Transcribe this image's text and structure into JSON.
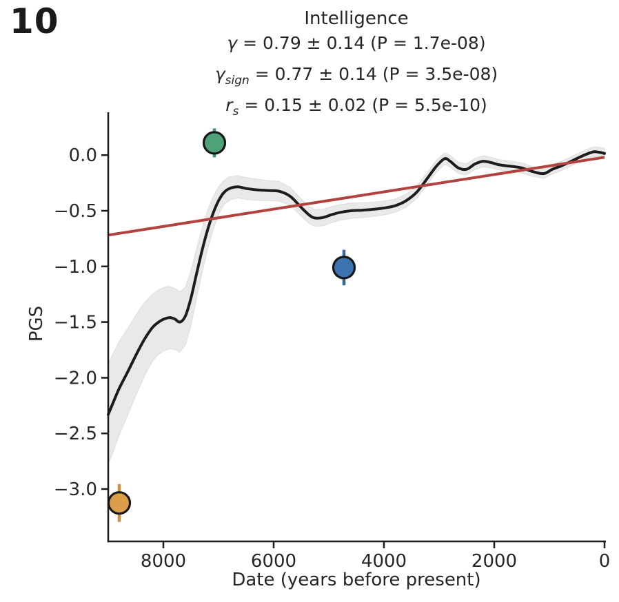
{
  "panel_label": "10",
  "title": "Intelligence",
  "stats": [
    {
      "sym": "γ",
      "sub": "",
      "rest": " = 0.79 ± 0.14 (P = 1.7e-08)"
    },
    {
      "sym": "γ",
      "sub": "sign",
      "rest": " = 0.77 ± 0.14 (P = 3.5e-08)"
    },
    {
      "sym": "r",
      "sub": "s",
      "rest": " = 0.15 ± 0.02 (P = 5.5e-10)"
    }
  ],
  "chart_data": {
    "type": "line",
    "title": "Intelligence",
    "xlabel": "Date (years before present)",
    "ylabel": "PGS",
    "grid": false,
    "legend": null,
    "x_axis": {
      "min": 0,
      "max": 9000,
      "reversed": true,
      "ticks": [
        {
          "value": 8000,
          "label": "8000"
        },
        {
          "value": 6000,
          "label": "6000"
        },
        {
          "value": 4000,
          "label": "4000"
        },
        {
          "value": 2000,
          "label": "2000"
        },
        {
          "value": 0,
          "label": "0"
        }
      ]
    },
    "y_axis": {
      "min": -3.47,
      "max": 0.385,
      "ticks": [
        {
          "value": 0.0,
          "label": "0.0"
        },
        {
          "value": -0.5,
          "label": "−0.5"
        },
        {
          "value": -1.0,
          "label": "−1.0"
        },
        {
          "value": -1.5,
          "label": "−1.5"
        },
        {
          "value": -2.0,
          "label": "−2.0"
        },
        {
          "value": -2.5,
          "label": "−2.5"
        },
        {
          "value": -3.0,
          "label": "−3.0"
        }
      ]
    },
    "series": [
      {
        "name": "pgs-trajectory-smoothed",
        "kind": "line-with-band",
        "x": [
          9000,
          8900,
          8800,
          8650,
          8500,
          8350,
          8200,
          8100,
          8000,
          7900,
          7800,
          7700,
          7600,
          7500,
          7400,
          7300,
          7200,
          7100,
          7000,
          6900,
          6800,
          6650,
          6500,
          6300,
          6100,
          5900,
          5700,
          5500,
          5350,
          5250,
          5100,
          4950,
          4800,
          4600,
          4400,
          4200,
          4000,
          3800,
          3600,
          3400,
          3200,
          3050,
          2900,
          2800,
          2650,
          2500,
          2350,
          2200,
          2050,
          1900,
          1700,
          1500,
          1300,
          1100,
          950,
          800,
          650,
          500,
          350,
          200,
          100,
          0
        ],
        "y": [
          -2.33,
          -2.21,
          -2.095,
          -1.95,
          -1.8,
          -1.66,
          -1.55,
          -1.505,
          -1.475,
          -1.46,
          -1.47,
          -1.5,
          -1.445,
          -1.285,
          -1.07,
          -0.86,
          -0.675,
          -0.525,
          -0.41,
          -0.335,
          -0.3,
          -0.285,
          -0.3,
          -0.312,
          -0.318,
          -0.325,
          -0.37,
          -0.47,
          -0.54,
          -0.565,
          -0.56,
          -0.535,
          -0.515,
          -0.5,
          -0.495,
          -0.487,
          -0.475,
          -0.455,
          -0.41,
          -0.33,
          -0.2,
          -0.1,
          -0.032,
          -0.055,
          -0.115,
          -0.127,
          -0.08,
          -0.055,
          -0.068,
          -0.088,
          -0.1,
          -0.115,
          -0.148,
          -0.166,
          -0.128,
          -0.1,
          -0.066,
          -0.03,
          0.004,
          0.03,
          0.026,
          0.015
        ],
        "band_half": [
          0.45,
          0.44,
          0.42,
          0.39,
          0.36,
          0.33,
          0.3,
          0.29,
          0.285,
          0.28,
          0.275,
          0.27,
          0.26,
          0.245,
          0.225,
          0.2,
          0.175,
          0.15,
          0.125,
          0.108,
          0.105,
          0.1,
          0.098,
          0.095,
          0.09,
          0.088,
          0.08,
          0.078,
          0.076,
          0.075,
          0.074,
          0.072,
          0.07,
          0.068,
          0.066,
          0.064,
          0.062,
          0.06,
          0.058,
          0.056,
          0.055,
          0.053,
          0.052,
          0.051,
          0.05,
          0.05,
          0.05,
          0.049,
          0.048,
          0.047,
          0.046,
          0.045,
          0.044,
          0.043,
          0.042,
          0.042,
          0.041,
          0.04,
          0.042,
          0.044,
          0.045,
          0.046
        ]
      },
      {
        "name": "linear-trend",
        "kind": "line",
        "x": [
          9000,
          0
        ],
        "y": [
          -0.718,
          -0.019
        ]
      }
    ],
    "points": [
      {
        "name": "green-sample",
        "x": 7075,
        "y": 0.11,
        "err": 0.13,
        "fill": "#4da376",
        "bar": "#44946b"
      },
      {
        "name": "blue-sample",
        "x": 4725,
        "y": -1.01,
        "err": 0.16,
        "fill": "#3d73b0",
        "bar": "#39689c"
      },
      {
        "name": "orange-sample",
        "x": 8800,
        "y": -3.125,
        "err": 0.17,
        "fill": "#dd9d4a",
        "bar": "#cc9147"
      }
    ],
    "style": {
      "curve_color": "#1c1c1c",
      "band_color": "#e9e9e9",
      "band_edge_color": "#dcdcdc",
      "trend_color": "#b2423d",
      "axis_color": "#1a1a1a",
      "text_color": "#262626",
      "point_edge_color": "#171717"
    }
  }
}
